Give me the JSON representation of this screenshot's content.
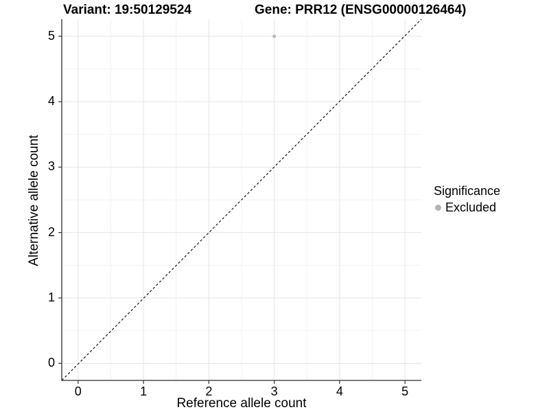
{
  "titles": {
    "variant": "Variant: 19:50129524",
    "gene": "Gene: PRR12 (ENSG00000126464)"
  },
  "chart_data": {
    "type": "scatter",
    "titles": [
      "Variant: 19:50129524",
      "Gene: PRR12 (ENSG00000126464)"
    ],
    "xlabel": "Reference allele count",
    "ylabel": "Alternative allele count",
    "xlim": [
      -0.25,
      5.25
    ],
    "ylim": [
      -0.26,
      5.26
    ],
    "xticks": [
      0,
      1,
      2,
      3,
      4,
      5
    ],
    "yticks": [
      0,
      1,
      2,
      3,
      4,
      5
    ],
    "grid": "major+minor",
    "identity_line": {
      "style": "dashed",
      "slope": 1,
      "intercept": 0,
      "from": [
        -0.25,
        -0.26
      ],
      "to": [
        5.25,
        5.26
      ]
    },
    "series": [
      {
        "name": "Excluded",
        "color": "#bdbdbd",
        "points": [
          {
            "x": 3,
            "y": 5
          }
        ]
      }
    ],
    "legend": {
      "title": "Significance",
      "position": "right",
      "entries": [
        {
          "label": "Excluded",
          "color": "#b3b3b3"
        }
      ]
    }
  },
  "colors": {
    "background": "#ffffff",
    "grid_major": "#e4e4e4",
    "grid_minor": "#f2f2f2",
    "axis_line": "#2b2b2b",
    "tick_mark": "#333333",
    "text": "#000000",
    "identity_line": "#000000"
  }
}
